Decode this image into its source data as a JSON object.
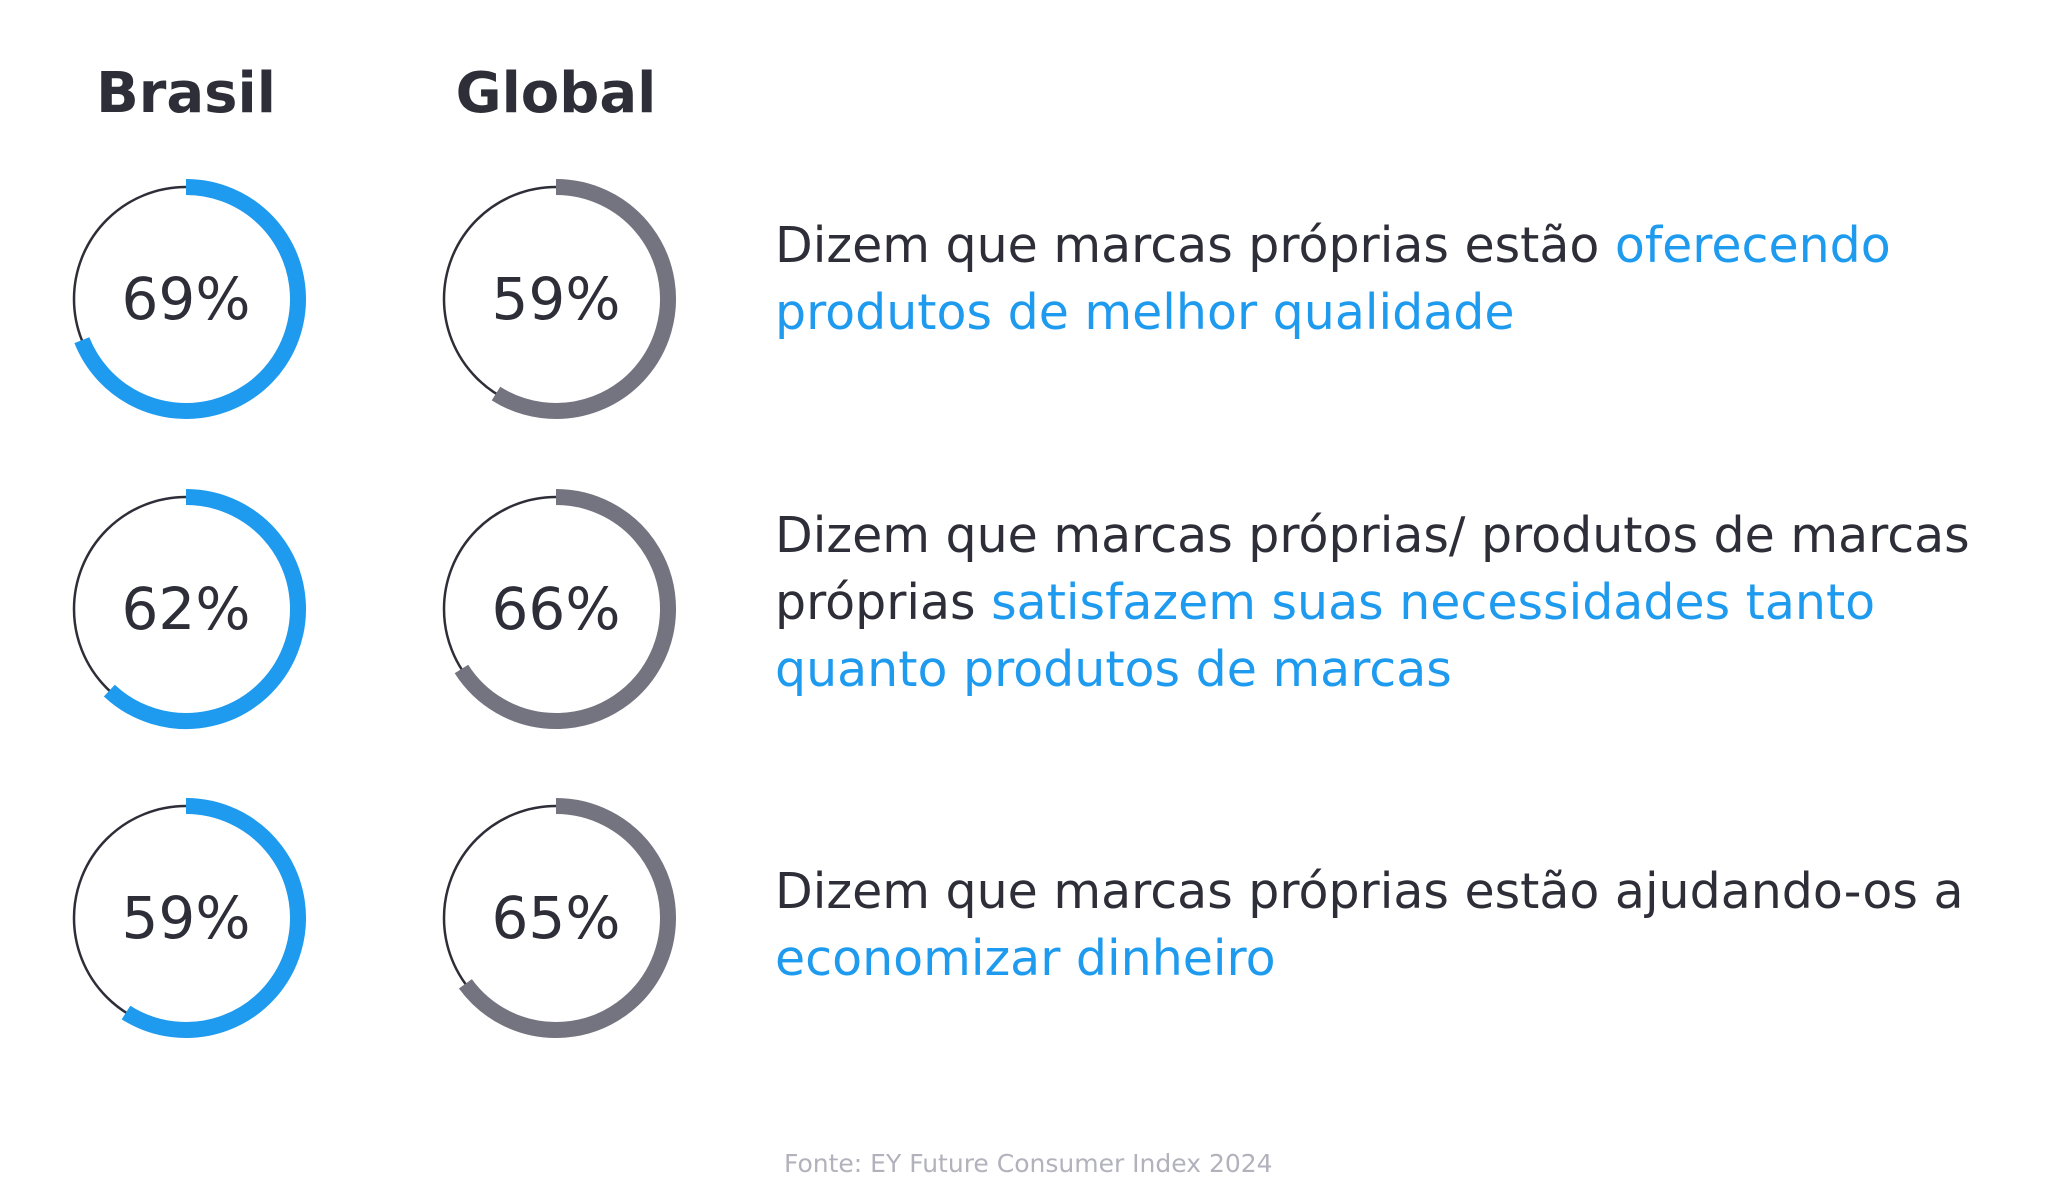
{
  "chart_data": {
    "type": "donut-comparison",
    "series": [
      {
        "name": "Brasil",
        "color": "#1e9aef",
        "values": [
          69,
          62,
          59
        ]
      },
      {
        "name": "Global",
        "color": "#747480",
        "values": [
          59,
          66,
          65
        ]
      }
    ],
    "unit": "%",
    "rows": [
      {
        "brasil_label": "69%",
        "global_label": "59%",
        "text_plain": "Dizem que marcas próprias estão ",
        "text_highlight": "oferecendo produtos de melhor qualidade",
        "text_tail": ""
      },
      {
        "brasil_label": "62%",
        "global_label": "66%",
        "text_plain": "Dizem que marcas próprias/ produtos de marcas próprias ",
        "text_highlight": "satisfazem suas necessidades tanto quanto produtos de marcas",
        "text_tail": ""
      },
      {
        "brasil_label": "59%",
        "global_label": "65%",
        "text_plain": "Dizem que marcas próprias estão ajudando-os a ",
        "text_highlight": "economizar dinheiro",
        "text_tail": ""
      }
    ],
    "highlight_color": "#1e9aef",
    "source": "Fonte: EY Future Consumer Index 2024"
  }
}
